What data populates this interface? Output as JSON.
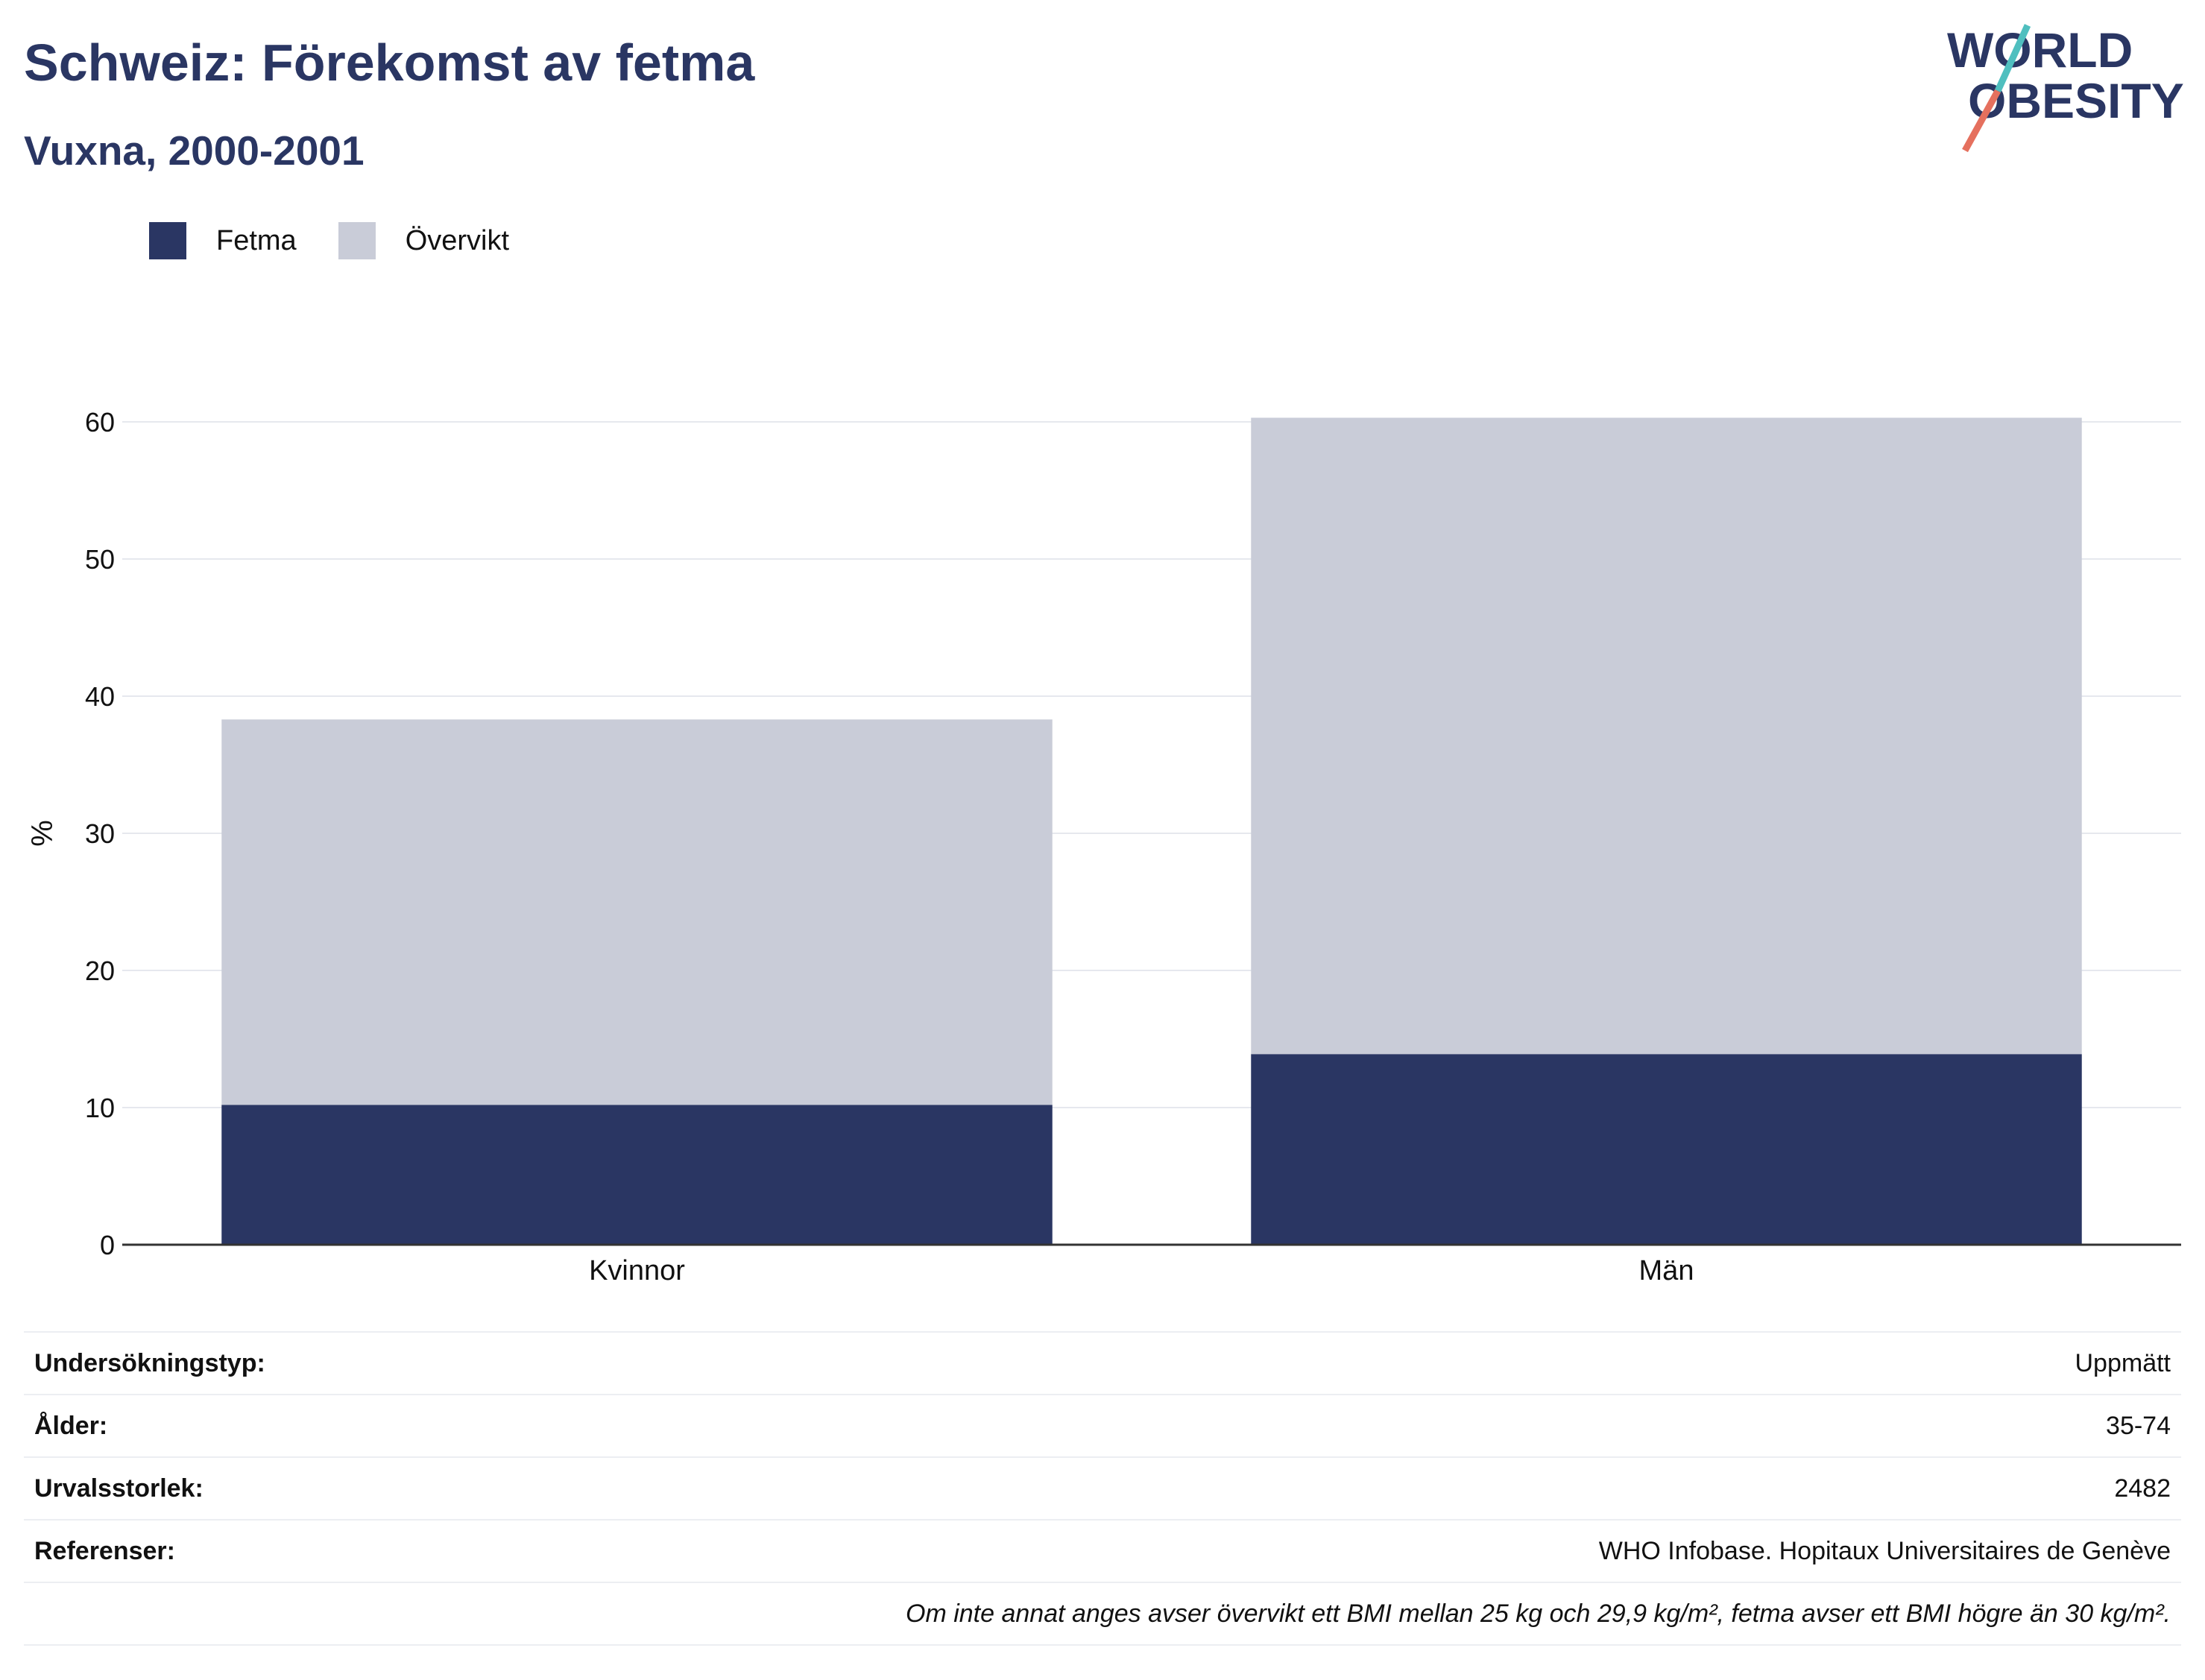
{
  "header": {
    "title": "Schweiz: Förekomst av fetma",
    "subtitle": "Vuxna, 2000-2001"
  },
  "logo": {
    "line1": "WORLD",
    "line2": "OBESITY",
    "slash_colors": [
      "#4fbfbf",
      "#e5705e"
    ]
  },
  "legend": {
    "items": [
      {
        "label": "Fetma",
        "color": "#2a3663"
      },
      {
        "label": "Övervikt",
        "color": "#c9ccd8"
      }
    ]
  },
  "chart_data": {
    "type": "bar",
    "stacked": true,
    "categories": [
      "Kvinnor",
      "Män"
    ],
    "series": [
      {
        "name": "Fetma",
        "color": "#2a3663",
        "values": [
          10.2,
          13.9
        ]
      },
      {
        "name": "Övervikt",
        "color": "#c9ccd8",
        "values": [
          28.1,
          46.4
        ]
      }
    ],
    "ylabel": "%",
    "xlabel": "",
    "ylim": [
      0,
      60
    ],
    "yticks": [
      0,
      10,
      20,
      30,
      40,
      50,
      60
    ],
    "grid": true,
    "legend_position": "top-left"
  },
  "info_table": {
    "rows": [
      {
        "label": "Undersökningstyp:",
        "value": "Uppmätt"
      },
      {
        "label": "Ålder:",
        "value": "35-74"
      },
      {
        "label": "Urvalsstorlek:",
        "value": "2482"
      },
      {
        "label": "Referenser:",
        "value": "WHO Infobase. Hopitaux Universitaires de Genève"
      }
    ],
    "note": "Om inte annat anges avser övervikt ett BMI mellan 25 kg och 29,9 kg/m², fetma avser ett BMI högre än 30 kg/m²."
  }
}
